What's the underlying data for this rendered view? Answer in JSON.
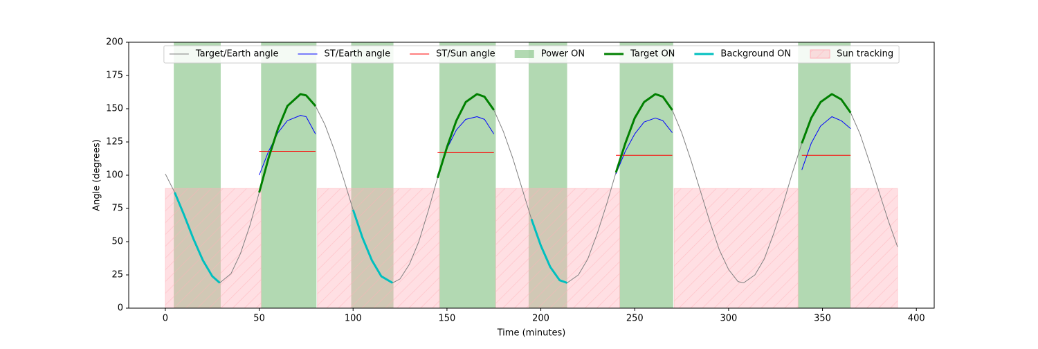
{
  "chart_data": {
    "type": "line",
    "xlabel": "Time (minutes)",
    "ylabel": "Angle (degrees)",
    "xlim": [
      -19.5,
      409.5
    ],
    "ylim": [
      0,
      200
    ],
    "xticks": [
      0,
      50,
      100,
      150,
      200,
      250,
      300,
      350,
      400
    ],
    "yticks": [
      0,
      25,
      50,
      75,
      100,
      125,
      150,
      175,
      200
    ],
    "grid": false,
    "legend": "upper center",
    "x": [
      0,
      5,
      10,
      15,
      20,
      25,
      29,
      35,
      40,
      45,
      50,
      55,
      60,
      65,
      72,
      75,
      80,
      85,
      90,
      95,
      100,
      105,
      110,
      115,
      121,
      125,
      130,
      135,
      140,
      145,
      150,
      155,
      160,
      166,
      170,
      175,
      180,
      185,
      190,
      195,
      200,
      205,
      210,
      214,
      220,
      225,
      230,
      235,
      240,
      245,
      250,
      255,
      261,
      265,
      270,
      275,
      280,
      285,
      290,
      295,
      300,
      305,
      308,
      314,
      319,
      324,
      329,
      334,
      339,
      344,
      349,
      355,
      360,
      365,
      370,
      375,
      380,
      385,
      390
    ],
    "series": [
      {
        "name": "Target/Earth angle",
        "kind": "line",
        "color": "#808080",
        "width": 1,
        "values": [
          101,
          87,
          70,
          52,
          36,
          24,
          19,
          26,
          41,
          62,
          87,
          113,
          135,
          152,
          161,
          160,
          152,
          138,
          119,
          97,
          74,
          53,
          36,
          24,
          19,
          22,
          33,
          50,
          73,
          98,
          121,
          141,
          155,
          161,
          159,
          149,
          133,
          113,
          90,
          67,
          47,
          31,
          21,
          19,
          25,
          37,
          56,
          78,
          102,
          124,
          143,
          155,
          161,
          159,
          149,
          132,
          111,
          88,
          65,
          44,
          29,
          20,
          19,
          25,
          37,
          56,
          78,
          102,
          124,
          143,
          155,
          161,
          157,
          147,
          131,
          110,
          88,
          66,
          46
        ]
      },
      {
        "name": "ST/Earth angle",
        "kind": "line",
        "color": "#0000ff",
        "width": 1,
        "values": [
          null,
          null,
          null,
          null,
          null,
          null,
          null,
          null,
          null,
          null,
          100,
          118,
          132,
          141,
          145,
          144,
          131,
          null,
          null,
          null,
          null,
          null,
          null,
          null,
          null,
          null,
          null,
          null,
          null,
          100,
          120,
          134,
          142,
          144,
          142,
          131,
          null,
          null,
          null,
          null,
          null,
          null,
          null,
          null,
          null,
          null,
          null,
          null,
          101,
          118,
          131,
          140,
          143,
          141,
          132,
          null,
          null,
          null,
          null,
          null,
          null,
          null,
          null,
          null,
          null,
          null,
          null,
          null,
          104,
          124,
          137,
          144,
          141,
          135,
          null,
          null,
          null,
          null,
          null
        ]
      },
      {
        "name": "ST/Sun angle",
        "kind": "line",
        "color": "#ff0000",
        "width": 1,
        "values": [
          null,
          null,
          null,
          null,
          null,
          null,
          null,
          null,
          null,
          null,
          118,
          118,
          118,
          118,
          118,
          118,
          118,
          null,
          null,
          null,
          null,
          null,
          null,
          null,
          null,
          null,
          null,
          null,
          null,
          117,
          117,
          117,
          117,
          117,
          117,
          117,
          null,
          null,
          null,
          null,
          null,
          null,
          null,
          null,
          null,
          null,
          null,
          null,
          115,
          115,
          115,
          115,
          115,
          115,
          115,
          null,
          null,
          null,
          null,
          null,
          null,
          null,
          null,
          null,
          null,
          null,
          null,
          null,
          115,
          115,
          115,
          115,
          115,
          115,
          null,
          null,
          null,
          null,
          null
        ]
      },
      {
        "name": "Power ON",
        "kind": "span",
        "color": "#008000",
        "spans": [
          [
            4.5,
            29.5
          ],
          [
            51,
            80.5
          ],
          [
            99,
            121.5
          ],
          [
            146,
            176
          ],
          [
            193.5,
            214
          ],
          [
            242,
            270.5
          ],
          [
            337,
            365
          ]
        ]
      },
      {
        "name": "Target ON",
        "kind": "line",
        "color": "#008000",
        "width": 3,
        "values": [
          null,
          null,
          null,
          null,
          null,
          null,
          null,
          null,
          null,
          null,
          87,
          113,
          135,
          152,
          161,
          160,
          152,
          null,
          null,
          null,
          null,
          null,
          null,
          null,
          null,
          null,
          null,
          null,
          null,
          98,
          121,
          141,
          155,
          161,
          159,
          149,
          null,
          null,
          null,
          null,
          null,
          null,
          null,
          null,
          null,
          null,
          null,
          null,
          102,
          124,
          143,
          155,
          161,
          159,
          149,
          null,
          null,
          null,
          null,
          null,
          null,
          null,
          null,
          null,
          null,
          null,
          null,
          null,
          124,
          143,
          155,
          161,
          157,
          147,
          null,
          null,
          null,
          null,
          null
        ]
      },
      {
        "name": "Background ON",
        "kind": "line",
        "color": "#00bfbf",
        "width": 3,
        "values": [
          null,
          87,
          70,
          52,
          36,
          24,
          19,
          null,
          null,
          null,
          null,
          null,
          null,
          null,
          null,
          null,
          null,
          null,
          null,
          null,
          74,
          53,
          36,
          24,
          19,
          null,
          null,
          null,
          null,
          null,
          null,
          null,
          null,
          null,
          null,
          null,
          null,
          null,
          null,
          67,
          47,
          31,
          21,
          19,
          null,
          null,
          null,
          null,
          null,
          null,
          null,
          null,
          null,
          null,
          null,
          null,
          null,
          null,
          null,
          null,
          null,
          null,
          null,
          null,
          null,
          null,
          null,
          null,
          null,
          null,
          null,
          null,
          null,
          null,
          null,
          null,
          null,
          null,
          null
        ]
      },
      {
        "name": "Sun tracking",
        "kind": "span",
        "color": "#ffb0b8",
        "yrange": [
          0,
          90
        ],
        "spans": [
          [
            0,
            51
          ],
          [
            81,
            146
          ],
          [
            176,
            242
          ],
          [
            271,
            337
          ],
          [
            365,
            390
          ]
        ]
      }
    ]
  }
}
